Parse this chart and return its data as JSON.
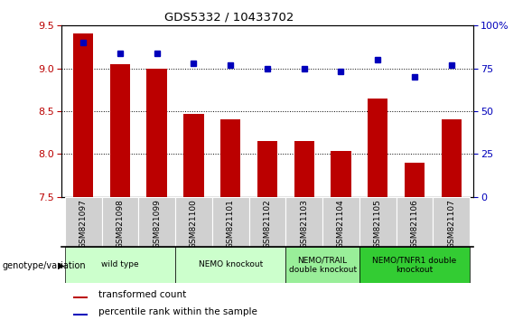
{
  "title": "GDS5332 / 10433702",
  "samples": [
    "GSM821097",
    "GSM821098",
    "GSM821099",
    "GSM821100",
    "GSM821101",
    "GSM821102",
    "GSM821103",
    "GSM821104",
    "GSM821105",
    "GSM821106",
    "GSM821107"
  ],
  "bar_values": [
    9.41,
    9.05,
    9.0,
    8.47,
    8.4,
    8.15,
    8.15,
    8.04,
    8.65,
    7.9,
    8.4
  ],
  "dot_values": [
    90,
    84,
    84,
    78,
    77,
    75,
    75,
    73,
    80,
    70,
    77
  ],
  "ylim_left": [
    7.5,
    9.5
  ],
  "ylim_right": [
    0,
    100
  ],
  "yticks_left": [
    7.5,
    8.0,
    8.5,
    9.0,
    9.5
  ],
  "yticks_right": [
    0,
    25,
    50,
    75,
    100
  ],
  "bar_color": "#bb0000",
  "dot_color": "#0000bb",
  "bg_tick": "#cccccc",
  "groups": [
    {
      "label": "wild type",
      "start": 0,
      "end": 2,
      "color": "#ccffcc"
    },
    {
      "label": "NEMO knockout",
      "start": 3,
      "end": 5,
      "color": "#ccffcc"
    },
    {
      "label": "NEMO/TRAIL\ndouble knockout",
      "start": 6,
      "end": 7,
      "color": "#99ee99"
    },
    {
      "label": "NEMO/TNFR1 double\nknockout",
      "start": 8,
      "end": 10,
      "color": "#33cc33"
    }
  ],
  "legend_bar_label": "transformed count",
  "legend_dot_label": "percentile rank within the sample",
  "genotype_label": "genotype/variation"
}
